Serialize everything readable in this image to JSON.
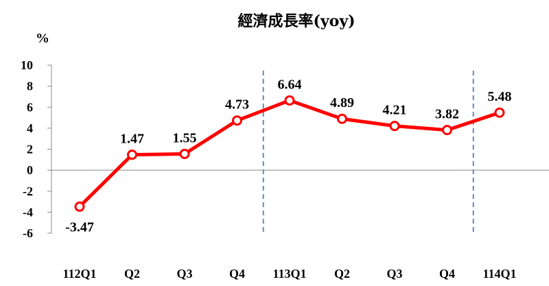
{
  "chart_data": {
    "type": "line",
    "title": "經濟成長率(yoy)",
    "ylabel": "%",
    "xlabel": "",
    "categories": [
      "112Q1",
      "Q2",
      "Q3",
      "Q4",
      "113Q1",
      "Q2",
      "Q3",
      "Q4",
      "114Q1"
    ],
    "series": [
      {
        "values": [
          -3.47,
          1.47,
          1.55,
          4.73,
          6.64,
          4.89,
          4.21,
          3.82,
          5.48
        ],
        "labels": [
          "-3.47",
          "1.47",
          "1.55",
          "4.73",
          "6.64",
          "4.89",
          "4.21",
          "3.82",
          "5.48"
        ],
        "color": "#ff0000"
      }
    ],
    "ylim": [
      -6,
      10
    ],
    "yticks": [
      "10",
      "8",
      "6",
      "4",
      "2",
      "0",
      "-2",
      "-4",
      "-6"
    ],
    "year_dividers": [
      "113Q1",
      "114Q1"
    ],
    "divider_color": "#5b8bbf",
    "grid": false,
    "legend": "none"
  }
}
